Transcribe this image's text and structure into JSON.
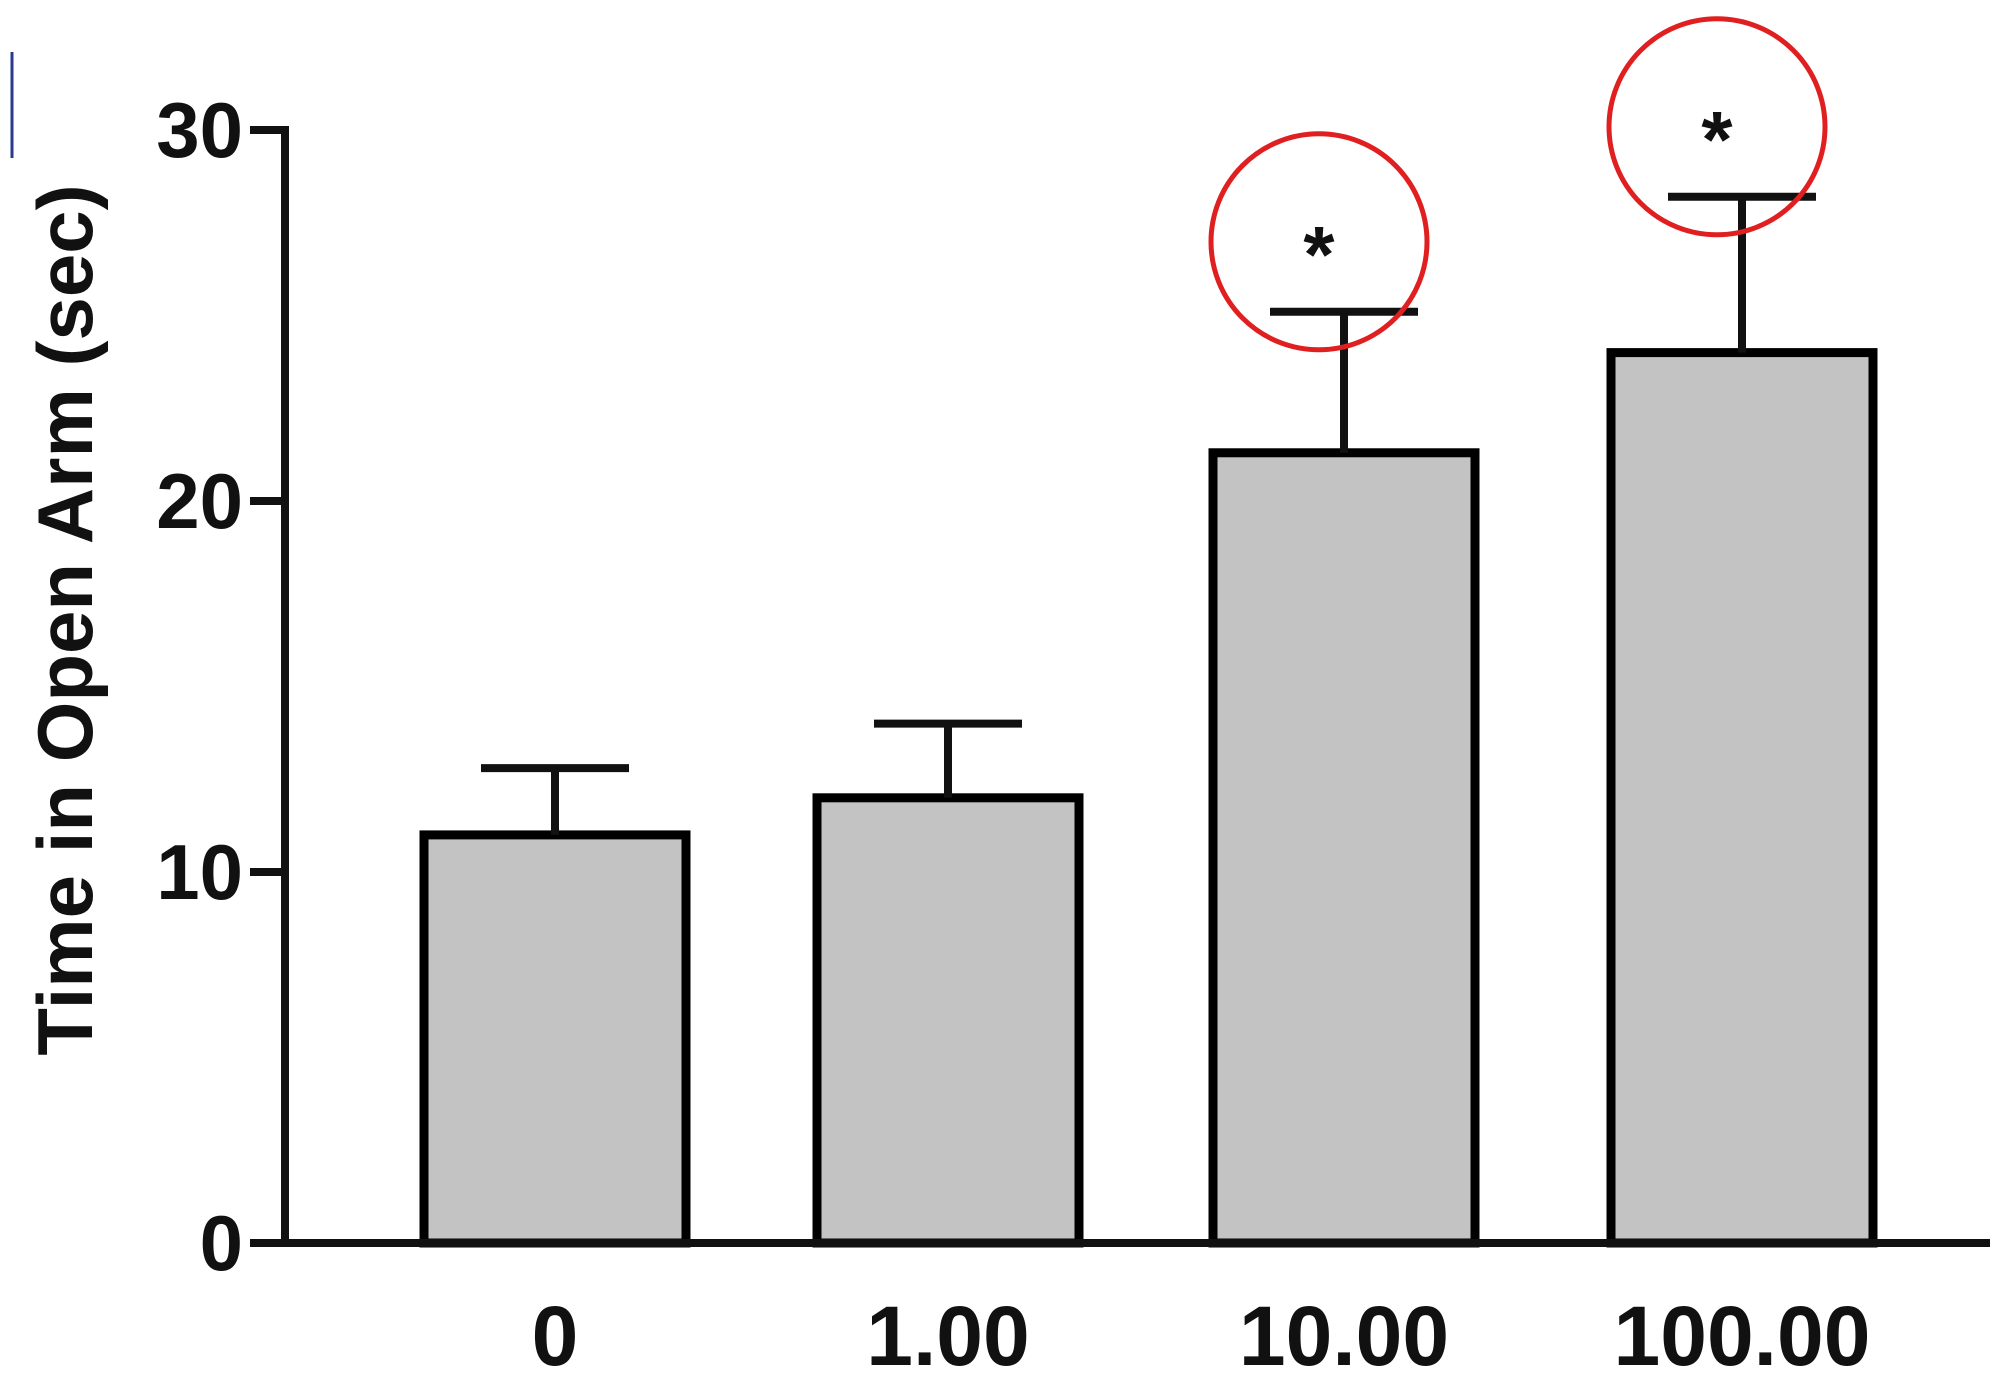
{
  "chart_data": {
    "type": "bar",
    "title": "",
    "xlabel": "",
    "ylabel": "Time in Open Arm (sec)",
    "ylim": [
      0,
      30
    ],
    "y_ticks": [
      0,
      10,
      20,
      30
    ],
    "categories": [
      "0",
      "1.00",
      "10.00",
      "100.00"
    ],
    "values": [
      11.0,
      12.0,
      21.3,
      24.0
    ],
    "error_upper": [
      12.8,
      14.0,
      25.1,
      28.2
    ],
    "significance": [
      "",
      "",
      "*",
      "*"
    ],
    "grid": false,
    "bar_color": "#c3c3c3",
    "highlight_color": "#e02020"
  }
}
